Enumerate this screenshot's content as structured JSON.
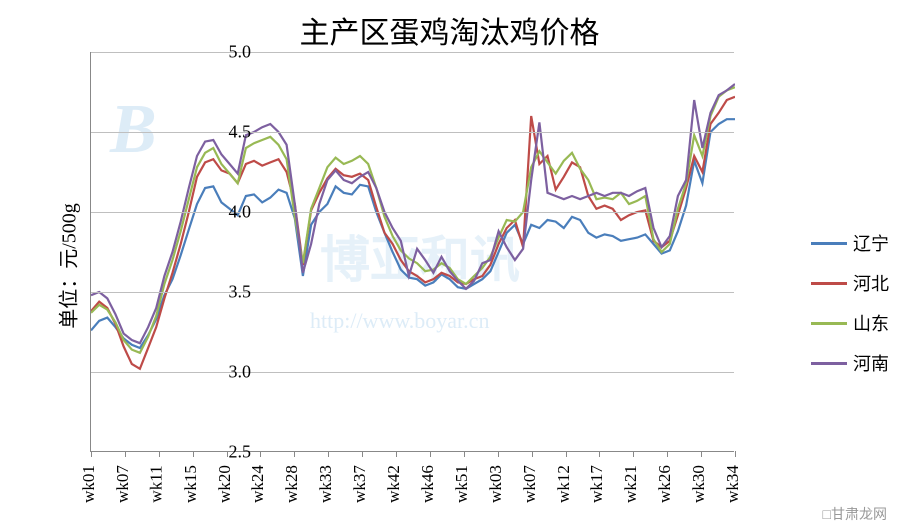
{
  "chart": {
    "type": "line",
    "title": "主产区蛋鸡淘汰鸡价格",
    "ylabel": "单位：元/500g",
    "ylim": [
      2.5,
      5.0
    ],
    "ytick_step": 0.5,
    "yticks": [
      "2.5",
      "3.0",
      "3.5",
      "4.0",
      "4.5",
      "5.0"
    ],
    "xticks": [
      "wk01",
      "wk07",
      "wk11",
      "wk15",
      "wk20",
      "wk24",
      "wk28",
      "wk33",
      "wk37",
      "wk42",
      "wk46",
      "wk51",
      "wk03",
      "wk07",
      "wk12",
      "wk17",
      "wk21",
      "wk26",
      "wk30",
      "wk34"
    ],
    "grid_color": "#bfbfbf",
    "background_color": "#ffffff",
    "axis_color": "#888888",
    "label_fontsize": 18,
    "title_fontsize": 30,
    "line_width": 2.2,
    "series": [
      {
        "name": "辽宁",
        "color": "#4a7ebb",
        "values": [
          3.26,
          3.32,
          3.34,
          3.28,
          3.21,
          3.17,
          3.15,
          3.23,
          3.33,
          3.48,
          3.58,
          3.73,
          3.89,
          4.05,
          4.15,
          4.16,
          4.06,
          4.02,
          3.98,
          4.1,
          4.11,
          4.06,
          4.09,
          4.14,
          4.12,
          3.96,
          3.6,
          3.92,
          4.0,
          4.05,
          4.16,
          4.12,
          4.11,
          4.17,
          4.16,
          4.0,
          3.87,
          3.75,
          3.64,
          3.59,
          3.58,
          3.54,
          3.56,
          3.61,
          3.58,
          3.53,
          3.52,
          3.55,
          3.58,
          3.63,
          3.75,
          3.87,
          3.92,
          3.8,
          3.92,
          3.9,
          3.95,
          3.94,
          3.9,
          3.97,
          3.95,
          3.87,
          3.84,
          3.86,
          3.85,
          3.82,
          3.83,
          3.84,
          3.86,
          3.8,
          3.74,
          3.76,
          3.88,
          4.04,
          4.32,
          4.18,
          4.5,
          4.55,
          4.58,
          4.58
        ]
      },
      {
        "name": "河北",
        "color": "#be4b48",
        "values": [
          3.38,
          3.44,
          3.4,
          3.3,
          3.16,
          3.05,
          3.02,
          3.15,
          3.28,
          3.46,
          3.62,
          3.8,
          4.0,
          4.22,
          4.31,
          4.33,
          4.26,
          4.24,
          4.18,
          4.3,
          4.32,
          4.29,
          4.31,
          4.33,
          4.25,
          4.05,
          3.67,
          4.01,
          4.12,
          4.21,
          4.27,
          4.23,
          4.22,
          4.24,
          4.2,
          4.03,
          3.87,
          3.8,
          3.7,
          3.63,
          3.6,
          3.56,
          3.58,
          3.62,
          3.6,
          3.56,
          3.55,
          3.58,
          3.6,
          3.67,
          3.8,
          3.9,
          3.95,
          3.78,
          4.6,
          4.3,
          4.35,
          4.14,
          4.22,
          4.31,
          4.28,
          4.1,
          4.02,
          4.04,
          4.02,
          3.95,
          3.98,
          4.0,
          4.01,
          3.82,
          3.78,
          3.82,
          3.98,
          4.15,
          4.35,
          4.25,
          4.55,
          4.62,
          4.7,
          4.72
        ]
      },
      {
        "name": "山东",
        "color": "#98b954",
        "values": [
          3.37,
          3.42,
          3.39,
          3.31,
          3.2,
          3.14,
          3.12,
          3.22,
          3.35,
          3.55,
          3.7,
          3.88,
          4.08,
          4.28,
          4.37,
          4.4,
          4.3,
          4.24,
          4.18,
          4.4,
          4.43,
          4.45,
          4.47,
          4.42,
          4.33,
          3.97,
          3.68,
          4.02,
          4.15,
          4.28,
          4.34,
          4.3,
          4.32,
          4.35,
          4.3,
          4.15,
          3.97,
          3.85,
          3.76,
          3.71,
          3.68,
          3.63,
          3.64,
          3.68,
          3.65,
          3.58,
          3.55,
          3.6,
          3.65,
          3.72,
          3.84,
          3.95,
          3.94,
          4.0,
          4.28,
          4.38,
          4.31,
          4.24,
          4.32,
          4.37,
          4.27,
          4.2,
          4.08,
          4.09,
          4.08,
          4.12,
          4.05,
          4.07,
          4.1,
          3.83,
          3.75,
          3.8,
          4.02,
          4.18,
          4.48,
          4.35,
          4.6,
          4.72,
          4.76,
          4.78
        ]
      },
      {
        "name": "河南",
        "color": "#7d60a0",
        "values": [
          3.48,
          3.5,
          3.46,
          3.36,
          3.24,
          3.2,
          3.18,
          3.28,
          3.4,
          3.6,
          3.75,
          3.94,
          4.15,
          4.35,
          4.44,
          4.45,
          4.36,
          4.3,
          4.24,
          4.48,
          4.5,
          4.53,
          4.55,
          4.5,
          4.42,
          4.05,
          3.62,
          3.8,
          4.05,
          4.2,
          4.26,
          4.2,
          4.18,
          4.22,
          4.25,
          4.15,
          4.0,
          3.9,
          3.82,
          3.6,
          3.77,
          3.7,
          3.62,
          3.72,
          3.63,
          3.57,
          3.52,
          3.57,
          3.68,
          3.7,
          3.88,
          3.78,
          3.7,
          3.77,
          4.2,
          4.56,
          4.12,
          4.1,
          4.08,
          4.1,
          4.08,
          4.1,
          4.12,
          4.1,
          4.12,
          4.12,
          4.1,
          4.13,
          4.15,
          3.9,
          3.78,
          3.85,
          4.1,
          4.2,
          4.7,
          4.4,
          4.62,
          4.73,
          4.76,
          4.8
        ]
      }
    ]
  },
  "watermark": {
    "logo1": "B",
    "logo2": "博亚和讯",
    "url": "http://www.boyar.cn"
  },
  "source": "□甘肃龙网"
}
